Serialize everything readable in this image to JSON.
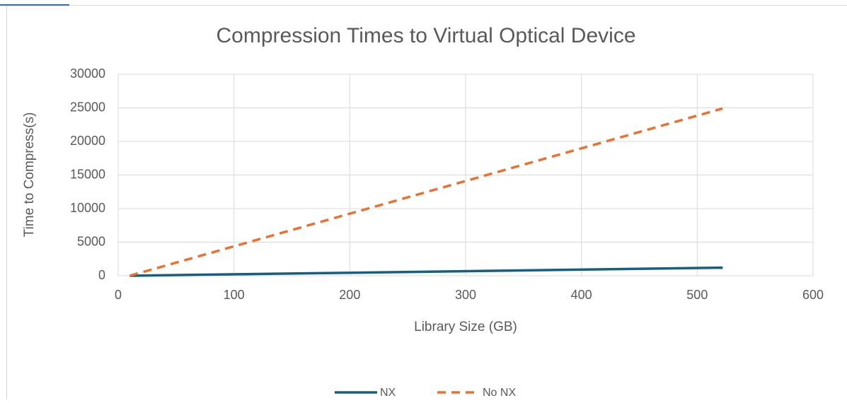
{
  "chart_data": {
    "type": "line",
    "title": "Compression Times to Virtual Optical Device",
    "x_label": "Library Size (GB)",
    "y_label": "Time to Compress(s)",
    "x": [
      10,
      522
    ],
    "series": [
      {
        "name": "NX",
        "color": "#156082",
        "dash": false,
        "values": [
          0,
          1200
        ]
      },
      {
        "name": "No NX",
        "color": "#e97132",
        "dash": true,
        "values": [
          0,
          24900
        ]
      }
    ],
    "xlim": [
      0,
      600
    ],
    "xticks": [
      0,
      100,
      200,
      300,
      400,
      500,
      600
    ],
    "ylim": [
      0,
      30000
    ],
    "yticks": [
      0,
      5000,
      10000,
      15000,
      20000,
      25000,
      30000
    ],
    "grid": true,
    "legend": "bottom"
  }
}
